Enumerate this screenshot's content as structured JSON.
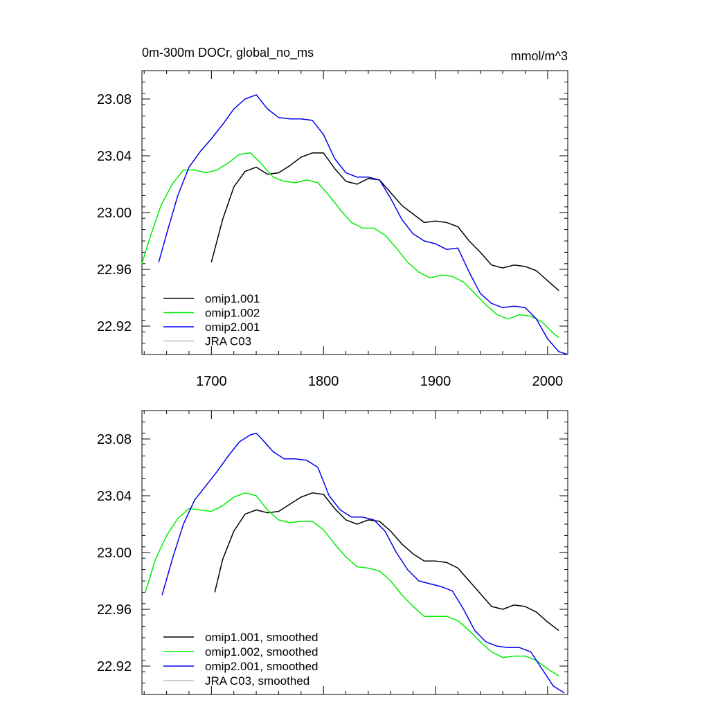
{
  "header": {
    "title": "0m-300m DOCr, global_no_ms",
    "units": "mmol/m^3"
  },
  "colors": {
    "omip1_001": "#000000",
    "omip1_002": "#00ee00",
    "omip2_001": "#0000ee",
    "jra_c03": "#bbbbbb"
  },
  "chart_data": [
    {
      "type": "line",
      "title": "0m-300m DOCr, global_no_ms",
      "units": "mmol/m^3",
      "xlim": [
        1638,
        2018
      ],
      "ylim": [
        22.9,
        23.1
      ],
      "x_ticks": [
        1700,
        1800,
        1900,
        2000
      ],
      "x_tick_labels": [
        "1700",
        "1800",
        "1900",
        "2000"
      ],
      "y_ticks": [
        22.92,
        22.96,
        23.0,
        23.04,
        23.08
      ],
      "y_tick_labels": [
        "22.92",
        "22.96",
        "23.00",
        "23.04",
        "23.08"
      ],
      "grid": false,
      "legend_position": "bottom-left",
      "series": [
        {
          "name": "omip1.001",
          "color": "#000000",
          "x": [
            1700,
            1710,
            1720,
            1730,
            1740,
            1750,
            1760,
            1770,
            1780,
            1790,
            1800,
            1810,
            1820,
            1830,
            1840,
            1850,
            1860,
            1870,
            1880,
            1890,
            1900,
            1910,
            1920,
            1930,
            1940,
            1950,
            1960,
            1970,
            1980,
            1990,
            2000,
            2010
          ],
          "y": [
            22.965,
            22.995,
            23.018,
            23.029,
            23.032,
            23.027,
            23.028,
            23.033,
            23.039,
            23.042,
            23.042,
            23.031,
            23.022,
            23.02,
            23.024,
            23.023,
            23.014,
            23.005,
            22.999,
            22.993,
            22.994,
            22.993,
            22.99,
            22.98,
            22.972,
            22.963,
            22.961,
            22.963,
            22.962,
            22.959,
            22.952,
            22.945
          ]
        },
        {
          "name": "omip1.002",
          "color": "#00ee00",
          "x": [
            1638,
            1645,
            1655,
            1665,
            1675,
            1685,
            1695,
            1705,
            1715,
            1725,
            1735,
            1745,
            1755,
            1765,
            1775,
            1785,
            1795,
            1805,
            1815,
            1825,
            1835,
            1845,
            1855,
            1865,
            1875,
            1885,
            1895,
            1905,
            1915,
            1925,
            1935,
            1945,
            1955,
            1965,
            1975,
            1985,
            1995,
            2005,
            2010
          ],
          "y": [
            22.964,
            22.982,
            23.005,
            23.02,
            23.03,
            23.03,
            23.028,
            23.03,
            23.035,
            23.041,
            23.042,
            23.034,
            23.025,
            23.022,
            23.021,
            23.023,
            23.021,
            23.012,
            23.002,
            22.993,
            22.989,
            22.989,
            22.984,
            22.975,
            22.965,
            22.958,
            22.954,
            22.956,
            22.955,
            22.951,
            22.943,
            22.935,
            22.928,
            22.925,
            22.928,
            22.927,
            22.923,
            22.915,
            22.912
          ]
        },
        {
          "name": "omip2.001",
          "color": "#0000ee",
          "x": [
            1653,
            1660,
            1670,
            1680,
            1690,
            1700,
            1710,
            1720,
            1730,
            1740,
            1750,
            1760,
            1770,
            1780,
            1790,
            1800,
            1810,
            1820,
            1830,
            1840,
            1850,
            1860,
            1870,
            1880,
            1890,
            1900,
            1910,
            1920,
            1930,
            1940,
            1950,
            1960,
            1970,
            1980,
            1990,
            2000,
            2010,
            2018
          ],
          "y": [
            22.965,
            22.985,
            23.012,
            23.032,
            23.043,
            23.052,
            23.062,
            23.073,
            23.08,
            23.083,
            23.073,
            23.067,
            23.066,
            23.066,
            23.065,
            23.055,
            23.038,
            23.028,
            23.025,
            23.025,
            23.023,
            23.01,
            22.995,
            22.985,
            22.98,
            22.978,
            22.974,
            22.975,
            22.958,
            22.943,
            22.936,
            22.933,
            22.934,
            22.933,
            22.925,
            22.911,
            22.902,
            22.9
          ]
        },
        {
          "name": "JRA C03",
          "color": "#bbbbbb",
          "x": [],
          "y": []
        }
      ]
    },
    {
      "type": "line",
      "title": "",
      "xlim": [
        1638,
        2018
      ],
      "ylim": [
        22.9,
        23.1
      ],
      "y_ticks": [
        22.92,
        22.96,
        23.0,
        23.04,
        23.08
      ],
      "y_tick_labels": [
        "22.92",
        "22.96",
        "23.00",
        "23.04",
        "23.08"
      ],
      "grid": false,
      "legend_position": "bottom-left",
      "series": [
        {
          "name": "omip1.001, smoothed",
          "color": "#000000",
          "x": [
            1703,
            1710,
            1720,
            1730,
            1740,
            1750,
            1760,
            1770,
            1780,
            1790,
            1800,
            1810,
            1820,
            1830,
            1840,
            1850,
            1860,
            1870,
            1880,
            1890,
            1900,
            1910,
            1920,
            1930,
            1940,
            1950,
            1960,
            1970,
            1980,
            1990,
            2000,
            2010
          ],
          "y": [
            22.972,
            22.995,
            23.015,
            23.027,
            23.03,
            23.028,
            23.029,
            23.034,
            23.039,
            23.042,
            23.041,
            23.031,
            23.023,
            23.02,
            23.023,
            23.022,
            23.015,
            23.006,
            22.999,
            22.994,
            22.994,
            22.993,
            22.989,
            22.98,
            22.971,
            22.962,
            22.96,
            22.963,
            22.962,
            22.958,
            22.951,
            22.945
          ]
        },
        {
          "name": "omip1.002, smoothed",
          "color": "#00ee00",
          "x": [
            1641,
            1650,
            1660,
            1670,
            1680,
            1690,
            1700,
            1710,
            1720,
            1730,
            1740,
            1750,
            1760,
            1770,
            1780,
            1790,
            1800,
            1810,
            1820,
            1830,
            1840,
            1850,
            1860,
            1870,
            1880,
            1890,
            1900,
            1910,
            1920,
            1930,
            1940,
            1950,
            1960,
            1970,
            1980,
            1990,
            2000,
            2010
          ],
          "y": [
            22.972,
            22.995,
            23.012,
            23.024,
            23.031,
            23.03,
            23.029,
            23.033,
            23.039,
            23.042,
            23.04,
            23.03,
            23.023,
            23.021,
            23.022,
            23.022,
            23.016,
            23.006,
            22.997,
            22.99,
            22.989,
            22.987,
            22.98,
            22.97,
            22.962,
            22.955,
            22.955,
            22.955,
            22.952,
            22.945,
            22.937,
            22.93,
            22.926,
            22.927,
            22.927,
            22.924,
            22.918,
            22.913
          ]
        },
        {
          "name": "omip2.001, smoothed",
          "color": "#0000ee",
          "x": [
            1656,
            1665,
            1675,
            1685,
            1695,
            1705,
            1715,
            1725,
            1735,
            1740,
            1745,
            1755,
            1765,
            1775,
            1785,
            1795,
            1805,
            1815,
            1825,
            1835,
            1845,
            1855,
            1865,
            1875,
            1885,
            1895,
            1905,
            1915,
            1925,
            1935,
            1945,
            1955,
            1965,
            1975,
            1985,
            1995,
            2005,
            2015
          ],
          "y": [
            22.97,
            22.995,
            23.02,
            23.037,
            23.047,
            23.057,
            23.068,
            23.078,
            23.083,
            23.084,
            23.08,
            23.071,
            23.066,
            23.066,
            23.065,
            23.06,
            23.04,
            23.03,
            23.025,
            23.025,
            23.023,
            23.015,
            23.0,
            22.988,
            22.98,
            22.978,
            22.976,
            22.973,
            22.96,
            22.945,
            22.937,
            22.934,
            22.933,
            22.933,
            22.93,
            22.918,
            22.906,
            22.901
          ]
        },
        {
          "name": "JRA C03, smoothed",
          "color": "#bbbbbb",
          "x": [],
          "y": []
        }
      ]
    }
  ]
}
